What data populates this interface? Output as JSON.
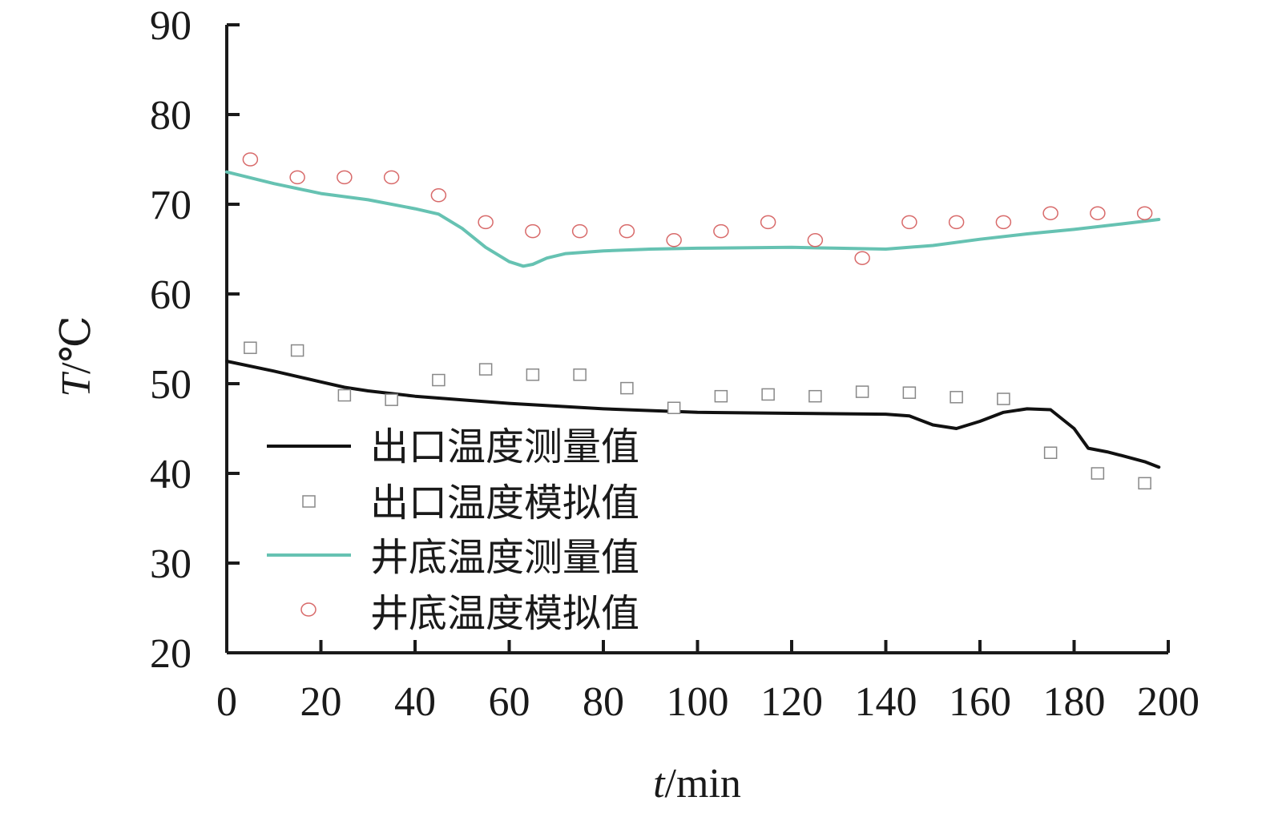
{
  "chart_data": {
    "type": "line",
    "title": "",
    "xlabel": {
      "var": "t",
      "unit": "/min"
    },
    "ylabel": {
      "var": "T",
      "unit": "/℃"
    },
    "xlim": [
      0,
      200
    ],
    "ylim": [
      20,
      90
    ],
    "xticks": [
      "0",
      "20",
      "40",
      "60",
      "80",
      "100",
      "120",
      "140",
      "160",
      "180",
      "200"
    ],
    "yticks": [
      "20",
      "30",
      "40",
      "50",
      "60",
      "70",
      "80",
      "90"
    ],
    "grid": false,
    "legend_position": "bottom-left",
    "series": [
      {
        "name": "出口温度测量值",
        "kind": "line",
        "color": "#111111",
        "x": [
          0,
          10,
          20,
          25,
          30,
          40,
          50,
          60,
          70,
          80,
          90,
          100,
          120,
          140,
          145,
          150,
          155,
          160,
          165,
          170,
          175,
          180,
          183,
          187,
          190,
          195,
          198
        ],
        "y": [
          52.5,
          51.4,
          50.2,
          49.6,
          49.2,
          48.6,
          48.2,
          47.8,
          47.5,
          47.2,
          47.0,
          46.8,
          46.7,
          46.6,
          46.4,
          45.4,
          45.0,
          45.8,
          46.8,
          47.2,
          47.1,
          45.0,
          42.8,
          42.4,
          42.0,
          41.3,
          40.7
        ]
      },
      {
        "name": "出口温度模拟值",
        "kind": "marker",
        "marker": "square",
        "color": "#888888",
        "x": [
          5,
          15,
          25,
          35,
          45,
          55,
          65,
          75,
          85,
          95,
          105,
          115,
          125,
          135,
          145,
          155,
          165,
          175,
          185,
          195
        ],
        "y": [
          54.0,
          53.7,
          48.7,
          48.2,
          50.4,
          51.6,
          51.0,
          51.0,
          49.5,
          47.3,
          48.6,
          48.8,
          48.6,
          49.1,
          49.0,
          48.5,
          48.3,
          42.3,
          40.0,
          38.9
        ]
      },
      {
        "name": "井底温度测量值",
        "kind": "line",
        "color": "#66c2b2",
        "x": [
          0,
          10,
          20,
          30,
          40,
          45,
          50,
          55,
          60,
          63,
          65,
          68,
          72,
          80,
          90,
          100,
          120,
          130,
          140,
          150,
          160,
          170,
          180,
          190,
          198
        ],
        "y": [
          73.6,
          72.3,
          71.2,
          70.5,
          69.5,
          68.9,
          67.3,
          65.2,
          63.6,
          63.1,
          63.3,
          64.0,
          64.5,
          64.8,
          65.0,
          65.1,
          65.2,
          65.1,
          65.0,
          65.4,
          66.1,
          66.7,
          67.2,
          67.8,
          68.3
        ]
      },
      {
        "name": "井底温度模拟值",
        "kind": "marker",
        "marker": "circle",
        "color": "#d86a6a",
        "x": [
          5,
          15,
          25,
          35,
          45,
          55,
          65,
          75,
          85,
          95,
          105,
          115,
          125,
          135,
          145,
          155,
          165,
          175,
          185,
          195
        ],
        "y": [
          75.0,
          73.0,
          73.0,
          73.0,
          71.0,
          68.0,
          67.0,
          67.0,
          67.0,
          66.0,
          67.0,
          68.0,
          66.0,
          64.0,
          68.0,
          68.0,
          68.0,
          69.0,
          69.0,
          69.0
        ]
      }
    ]
  }
}
